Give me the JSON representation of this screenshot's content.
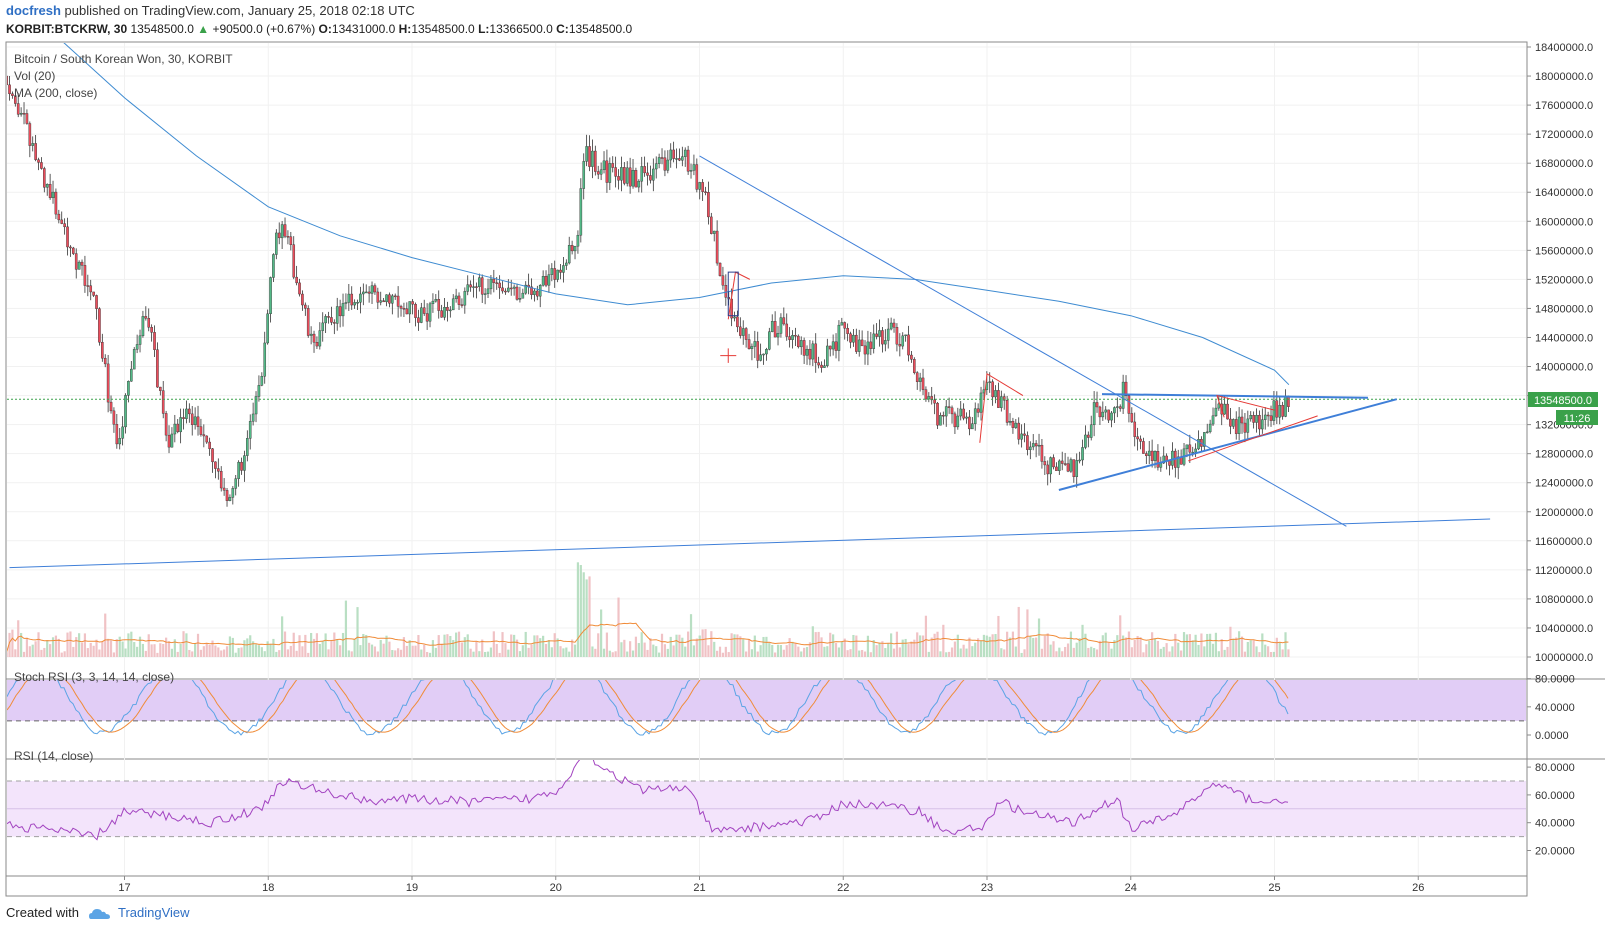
{
  "header": {
    "author": "docfresh",
    "published_text": "published on TradingView.com, January 25, 2018 02:18 UTC",
    "symbol": "KORBIT:BTCKRW, 30",
    "last": "13548500.0",
    "change_arrow": "▲",
    "change": "+90500.0 (+0.67%)",
    "o_label": "O:",
    "o_value": "13431000.0",
    "h_label": "H:",
    "h_value": "13548500.0",
    "l_label": "L:",
    "l_value": "13366500.0",
    "c_label": "C:",
    "c_value": "13548500.0"
  },
  "legend": {
    "title": "Bitcoin / South Korean Won, 30, KORBIT",
    "vol": "Vol (20)",
    "ma": "MA (200, close)",
    "stoch": "Stoch RSI (3, 3, 14, 14, close)",
    "rsi": "RSI (14, close)"
  },
  "price_axis": {
    "labels": [
      "18400000.0",
      "18000000.0",
      "17600000.0",
      "17200000.0",
      "16800000.0",
      "16400000.0",
      "16000000.0",
      "15600000.0",
      "15200000.0",
      "14800000.0",
      "14400000.0",
      "14000000.0",
      "13600000.0",
      "13200000.0",
      "12800000.0",
      "12400000.0",
      "12000000.0",
      "11600000.0",
      "11200000.0",
      "10800000.0",
      "10400000.0",
      "10000000.0"
    ],
    "last_price": "13548500.0",
    "countdown": "11:26"
  },
  "stoch_axis": [
    "80.0000",
    "40.0000",
    "0.0000"
  ],
  "rsi_axis": [
    "80.0000",
    "60.0000",
    "40.0000",
    "20.0000"
  ],
  "time_axis": [
    "17",
    "18",
    "19",
    "20",
    "21",
    "22",
    "23",
    "24",
    "25",
    "26"
  ],
  "footer": {
    "created_with": "Created with",
    "brand": "TradingView"
  },
  "colors": {
    "up": "#53b987",
    "down": "#eb4d5c",
    "wick": "#333333",
    "ma": "#3e8bd1",
    "trend": "#3f7fd8",
    "red_line": "#e53935",
    "stoch_fill": "#e1cdf6",
    "rsi_fill": "#f3e4fb",
    "rsi_line": "#a243c0",
    "vol_ma": "#f08c39",
    "vol_up": "#b9dfc3",
    "vol_down": "#f0c2c5"
  },
  "chart_data": {
    "type": "candlestick",
    "title": "Bitcoin / South Korean Won, 30, KORBIT",
    "ylim": [
      10000000,
      18600000
    ],
    "x_ticks": [
      "17",
      "18",
      "19",
      "20",
      "21",
      "22",
      "23",
      "24",
      "25",
      "26"
    ],
    "x_tick_positions": [
      17,
      18,
      19,
      20,
      21,
      22,
      23,
      24,
      25,
      26
    ],
    "xlim": [
      16.18,
      26.5
    ],
    "close_path": [
      [
        16.18,
        18000000
      ],
      [
        16.4,
        16800000
      ],
      [
        16.6,
        15800000
      ],
      [
        16.8,
        14800000
      ],
      [
        16.95,
        12800000
      ],
      [
        17.05,
        14000000
      ],
      [
        17.15,
        14800000
      ],
      [
        17.3,
        13000000
      ],
      [
        17.45,
        13400000
      ],
      [
        17.6,
        12800000
      ],
      [
        17.7,
        12100000
      ],
      [
        17.85,
        12900000
      ],
      [
        17.95,
        13800000
      ],
      [
        18.05,
        16000000
      ],
      [
        18.15,
        15600000
      ],
      [
        18.3,
        14300000
      ],
      [
        18.45,
        14700000
      ],
      [
        18.65,
        15000000
      ],
      [
        18.85,
        15000000
      ],
      [
        19.05,
        14700000
      ],
      [
        19.3,
        14900000
      ],
      [
        19.55,
        15200000
      ],
      [
        19.8,
        15000000
      ],
      [
        20.0,
        15300000
      ],
      [
        20.15,
        15700000
      ],
      [
        20.2,
        17000000
      ],
      [
        20.3,
        16700000
      ],
      [
        20.55,
        16600000
      ],
      [
        20.75,
        16800000
      ],
      [
        20.9,
        16900000
      ],
      [
        21.05,
        16300000
      ],
      [
        21.15,
        15200000
      ],
      [
        21.25,
        14600000
      ],
      [
        21.4,
        14200000
      ],
      [
        21.55,
        14600000
      ],
      [
        21.7,
        14300000
      ],
      [
        21.85,
        14100000
      ],
      [
        22.0,
        14500000
      ],
      [
        22.1,
        14200000
      ],
      [
        22.3,
        14500000
      ],
      [
        22.45,
        14300000
      ],
      [
        22.55,
        13700000
      ],
      [
        22.65,
        13300000
      ],
      [
        22.8,
        13300000
      ],
      [
        22.9,
        13200000
      ],
      [
        23.0,
        13800000
      ],
      [
        23.1,
        13500000
      ],
      [
        23.25,
        13000000
      ],
      [
        23.45,
        12600000
      ],
      [
        23.6,
        12600000
      ],
      [
        23.75,
        13400000
      ],
      [
        23.9,
        13400000
      ],
      [
        23.95,
        13700000
      ],
      [
        24.05,
        13000000
      ],
      [
        24.2,
        12700000
      ],
      [
        24.4,
        12800000
      ],
      [
        24.5,
        13000000
      ],
      [
        24.6,
        13500000
      ],
      [
        24.7,
        13200000
      ],
      [
        24.85,
        13200000
      ],
      [
        25.0,
        13400000
      ],
      [
        25.1,
        13500000
      ]
    ],
    "series": [
      {
        "name": "MA (200, close)",
        "points": [
          [
            16.5,
            18600000
          ],
          [
            17.0,
            17700000
          ],
          [
            17.5,
            16900000
          ],
          [
            18.0,
            16200000
          ],
          [
            18.5,
            15800000
          ],
          [
            19.0,
            15500000
          ],
          [
            19.5,
            15250000
          ],
          [
            20.0,
            15000000
          ],
          [
            20.5,
            14850000
          ],
          [
            21.0,
            14950000
          ],
          [
            21.5,
            15150000
          ],
          [
            22.0,
            15250000
          ],
          [
            22.5,
            15200000
          ],
          [
            23.0,
            15050000
          ],
          [
            23.5,
            14900000
          ],
          [
            24.0,
            14700000
          ],
          [
            24.5,
            14400000
          ],
          [
            25.0,
            13950000
          ],
          [
            25.1,
            13750000
          ]
        ]
      }
    ],
    "stoch_rsi": {
      "ylim": [
        0,
        100
      ],
      "bands": [
        80,
        20
      ]
    },
    "rsi": {
      "ylim": [
        14,
        93
      ],
      "bands": [
        70,
        30
      ],
      "points": [
        [
          16.18,
          38
        ],
        [
          16.5,
          35
        ],
        [
          16.8,
          30
        ],
        [
          17.0,
          48
        ],
        [
          17.3,
          45
        ],
        [
          17.6,
          40
        ],
        [
          17.95,
          50
        ],
        [
          18.1,
          70
        ],
        [
          18.4,
          62
        ],
        [
          18.7,
          56
        ],
        [
          19.0,
          57
        ],
        [
          19.4,
          55
        ],
        [
          19.8,
          57
        ],
        [
          20.0,
          62
        ],
        [
          20.2,
          90
        ],
        [
          20.4,
          75
        ],
        [
          20.6,
          63
        ],
        [
          20.9,
          66
        ],
        [
          21.1,
          33
        ],
        [
          21.4,
          37
        ],
        [
          21.8,
          42
        ],
        [
          22.0,
          54
        ],
        [
          22.3,
          52
        ],
        [
          22.55,
          48
        ],
        [
          22.7,
          33
        ],
        [
          22.95,
          36
        ],
        [
          23.1,
          55
        ],
        [
          23.3,
          46
        ],
        [
          23.6,
          40
        ],
        [
          23.9,
          58
        ],
        [
          24.0,
          35
        ],
        [
          24.3,
          46
        ],
        [
          24.5,
          62
        ],
        [
          24.6,
          68
        ],
        [
          24.8,
          58
        ],
        [
          25.0,
          54
        ],
        [
          25.1,
          58
        ]
      ]
    },
    "drawings": [
      {
        "type": "trendline",
        "from": [
          16.2,
          11230000
        ],
        "to": [
          26.5,
          11900000
        ]
      },
      {
        "type": "trendline",
        "from": [
          21.0,
          16900000
        ],
        "to": [
          25.5,
          11800000
        ]
      },
      {
        "type": "trendline",
        "from": [
          23.5,
          12300000
        ],
        "to": [
          25.85,
          13550000
        ]
      },
      {
        "type": "trendline",
        "from": [
          23.8,
          13620000
        ],
        "to": [
          25.65,
          13570000
        ]
      },
      {
        "type": "red_channel",
        "from": [
          24.4,
          12700000
        ],
        "to": [
          25.3,
          13320000
        ]
      }
    ]
  }
}
